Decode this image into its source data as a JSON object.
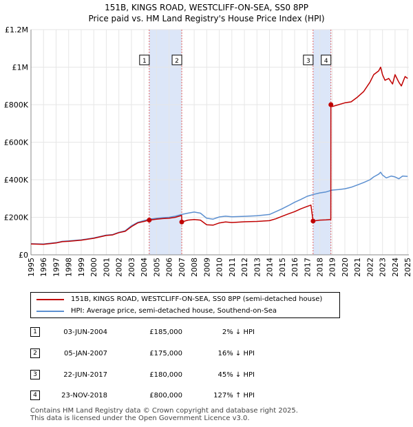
{
  "title": {
    "line1": "151B, KINGS ROAD, WESTCLIFF-ON-SEA, SS0 8PP",
    "line2": "Price paid vs. HM Land Registry's House Price Index (HPI)"
  },
  "colors": {
    "property": "#c00000",
    "hpi": "#5b8fd0",
    "shade": "#dce6f8",
    "marker_line": "#e06060",
    "grid": "#e6e6e6"
  },
  "chart_data": {
    "type": "line",
    "xlim": [
      1995.0,
      2025.1
    ],
    "ylim": [
      0,
      1200000
    ],
    "x_ticks": [
      1995,
      1996,
      1997,
      1998,
      1999,
      2000,
      2001,
      2002,
      2003,
      2004,
      2005,
      2006,
      2007,
      2008,
      2009,
      2010,
      2011,
      2012,
      2013,
      2014,
      2015,
      2016,
      2017,
      2018,
      2019,
      2020,
      2021,
      2022,
      2023,
      2024,
      2025
    ],
    "y_ticks": [
      {
        "value": 0,
        "label": "£0"
      },
      {
        "value": 200000,
        "label": "£200K"
      },
      {
        "value": 400000,
        "label": "£400K"
      },
      {
        "value": 600000,
        "label": "£600K"
      },
      {
        "value": 800000,
        "label": "£800K"
      },
      {
        "value": 1000000,
        "label": "£1M"
      },
      {
        "value": 1200000,
        "label": "£1.2M"
      }
    ],
    "shaded_ranges": [
      [
        2004.42,
        2007.01
      ],
      [
        2017.47,
        2018.89
      ]
    ],
    "series": [
      {
        "name": "151B, KINGS ROAD, WESTCLIFF-ON-SEA, SS0 8PP (semi-detached house)",
        "color": "#c00000",
        "points": [
          [
            1995.0,
            58000
          ],
          [
            1996.0,
            56000
          ],
          [
            1997.0,
            63000
          ],
          [
            1997.5,
            70000
          ],
          [
            1998.0,
            72000
          ],
          [
            1999.0,
            78000
          ],
          [
            2000.0,
            88000
          ],
          [
            2001.0,
            103000
          ],
          [
            2001.5,
            106000
          ],
          [
            2002.0,
            118000
          ],
          [
            2002.5,
            125000
          ],
          [
            2003.0,
            150000
          ],
          [
            2003.5,
            170000
          ],
          [
            2004.0,
            178000
          ],
          [
            2004.42,
            185000
          ],
          [
            2005.0,
            190000
          ],
          [
            2005.5,
            193000
          ],
          [
            2006.0,
            195000
          ],
          [
            2006.5,
            200000
          ],
          [
            2007.0,
            210000
          ],
          [
            2007.01,
            175000
          ],
          [
            2007.5,
            185000
          ],
          [
            2008.0,
            188000
          ],
          [
            2008.5,
            185000
          ],
          [
            2009.0,
            160000
          ],
          [
            2009.5,
            158000
          ],
          [
            2010.0,
            170000
          ],
          [
            2010.5,
            175000
          ],
          [
            2011.0,
            172000
          ],
          [
            2012.0,
            176000
          ],
          [
            2013.0,
            178000
          ],
          [
            2014.0,
            182000
          ],
          [
            2014.5,
            192000
          ],
          [
            2015.0,
            205000
          ],
          [
            2015.5,
            218000
          ],
          [
            2016.0,
            230000
          ],
          [
            2016.5,
            245000
          ],
          [
            2017.0,
            258000
          ],
          [
            2017.3,
            265000
          ],
          [
            2017.47,
            180000
          ],
          [
            2017.7,
            182000
          ],
          [
            2018.0,
            185000
          ],
          [
            2018.5,
            186000
          ],
          [
            2018.88,
            188000
          ],
          [
            2018.89,
            800000
          ],
          [
            2019.0,
            790000
          ],
          [
            2019.5,
            800000
          ],
          [
            2020.0,
            810000
          ],
          [
            2020.5,
            815000
          ],
          [
            2021.0,
            840000
          ],
          [
            2021.5,
            870000
          ],
          [
            2022.0,
            920000
          ],
          [
            2022.3,
            960000
          ],
          [
            2022.7,
            980000
          ],
          [
            2022.85,
            1000000
          ],
          [
            2023.0,
            960000
          ],
          [
            2023.2,
            930000
          ],
          [
            2023.5,
            940000
          ],
          [
            2023.8,
            910000
          ],
          [
            2024.0,
            960000
          ],
          [
            2024.3,
            920000
          ],
          [
            2024.5,
            900000
          ],
          [
            2024.8,
            950000
          ],
          [
            2025.0,
            940000
          ]
        ]
      },
      {
        "name": "HPI: Average price, semi-detached house, Southend-on-Sea",
        "color": "#5b8fd0",
        "points": [
          [
            1995.0,
            59000
          ],
          [
            1996.0,
            58000
          ],
          [
            1997.0,
            65000
          ],
          [
            1997.5,
            72000
          ],
          [
            1998.0,
            74000
          ],
          [
            1999.0,
            80000
          ],
          [
            2000.0,
            90000
          ],
          [
            2001.0,
            105000
          ],
          [
            2001.5,
            108000
          ],
          [
            2002.0,
            120000
          ],
          [
            2002.5,
            128000
          ],
          [
            2003.0,
            155000
          ],
          [
            2003.5,
            173000
          ],
          [
            2004.0,
            182000
          ],
          [
            2004.42,
            190000
          ],
          [
            2005.0,
            195000
          ],
          [
            2005.5,
            198000
          ],
          [
            2006.0,
            200000
          ],
          [
            2006.5,
            206000
          ],
          [
            2007.0,
            215000
          ],
          [
            2007.5,
            222000
          ],
          [
            2008.0,
            228000
          ],
          [
            2008.5,
            222000
          ],
          [
            2009.0,
            195000
          ],
          [
            2009.5,
            190000
          ],
          [
            2010.0,
            202000
          ],
          [
            2010.5,
            206000
          ],
          [
            2011.0,
            203000
          ],
          [
            2012.0,
            205000
          ],
          [
            2013.0,
            208000
          ],
          [
            2014.0,
            215000
          ],
          [
            2014.5,
            230000
          ],
          [
            2015.0,
            245000
          ],
          [
            2015.5,
            262000
          ],
          [
            2016.0,
            280000
          ],
          [
            2016.5,
            295000
          ],
          [
            2017.0,
            312000
          ],
          [
            2017.5,
            322000
          ],
          [
            2018.0,
            330000
          ],
          [
            2018.5,
            335000
          ],
          [
            2019.0,
            345000
          ],
          [
            2019.5,
            348000
          ],
          [
            2020.0,
            352000
          ],
          [
            2020.5,
            360000
          ],
          [
            2021.0,
            372000
          ],
          [
            2021.5,
            385000
          ],
          [
            2022.0,
            400000
          ],
          [
            2022.3,
            415000
          ],
          [
            2022.7,
            430000
          ],
          [
            2022.85,
            440000
          ],
          [
            2023.0,
            425000
          ],
          [
            2023.3,
            410000
          ],
          [
            2023.7,
            420000
          ],
          [
            2024.0,
            415000
          ],
          [
            2024.3,
            405000
          ],
          [
            2024.6,
            420000
          ],
          [
            2025.0,
            418000
          ]
        ]
      }
    ],
    "sales": [
      {
        "id": "1",
        "x": 2004.42,
        "price": 185000
      },
      {
        "id": "2",
        "x": 2007.01,
        "price": 175000
      },
      {
        "id": "3",
        "x": 2017.47,
        "price": 180000
      },
      {
        "id": "4",
        "x": 2018.89,
        "price": 800000
      }
    ]
  },
  "legend": {
    "items": [
      {
        "label": "151B, KINGS ROAD, WESTCLIFF-ON-SEA, SS0 8PP (semi-detached house)",
        "color": "#c00000"
      },
      {
        "label": "HPI: Average price, semi-detached house, Southend-on-Sea",
        "color": "#5b8fd0"
      }
    ]
  },
  "transactions": [
    {
      "num": "1",
      "date": "03-JUN-2004",
      "price": "£185,000",
      "hpi": "2% ↓ HPI"
    },
    {
      "num": "2",
      "date": "05-JAN-2007",
      "price": "£175,000",
      "hpi": "16% ↓ HPI"
    },
    {
      "num": "3",
      "date": "22-JUN-2017",
      "price": "£180,000",
      "hpi": "45% ↓ HPI"
    },
    {
      "num": "4",
      "date": "23-NOV-2018",
      "price": "£800,000",
      "hpi": "127% ↑ HPI"
    }
  ],
  "footer": {
    "line1": "Contains HM Land Registry data © Crown copyright and database right 2025.",
    "line2": "This data is licensed under the Open Government Licence v3.0."
  }
}
